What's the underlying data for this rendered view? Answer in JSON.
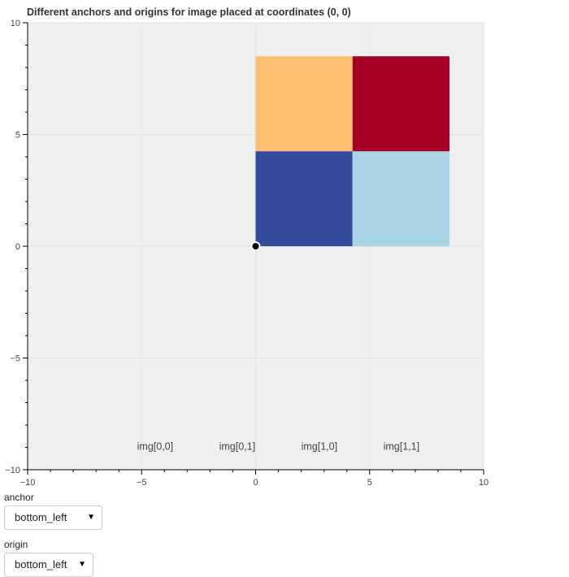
{
  "chart_data": {
    "type": "image",
    "title": "Different anchors and origins for image placed at coordinates (0, 0)",
    "xlim": [
      -10,
      10
    ],
    "ylim": [
      -10,
      10
    ],
    "x_major_ticks": [
      -10,
      -5,
      0,
      5,
      10
    ],
    "y_major_ticks": [
      -10,
      -5,
      0,
      5,
      10
    ],
    "x_minor_step": 1,
    "y_minor_step": 1,
    "x_tick_labels": [
      "−10",
      "−5",
      "0",
      "5",
      "10"
    ],
    "y_tick_labels": [
      "−10",
      "−5",
      "0",
      "5",
      "10"
    ],
    "grid": true,
    "image": {
      "x": 0,
      "y": 0,
      "dw": 8.5,
      "dh": 8.5,
      "anchor": "bottom_left",
      "origin": "bottom_left",
      "cells": [
        {
          "row": 0,
          "col": 0,
          "color": "#344b9b"
        },
        {
          "row": 0,
          "col": 1,
          "color": "#a8d4e5"
        },
        {
          "row": 1,
          "col": 0,
          "color": "#fdbf71"
        },
        {
          "row": 1,
          "col": 1,
          "color": "#a60026"
        }
      ]
    },
    "anchor_point": {
      "x": 0,
      "y": 0
    },
    "annotations": [
      {
        "text": "img[0,0]",
        "x": -5.2,
        "y": -9.1
      },
      {
        "text": "img[0,1]",
        "x": -1.6,
        "y": -9.1
      },
      {
        "text": "img[1,0]",
        "x": 2.0,
        "y": -9.1
      },
      {
        "text": "img[1,1]",
        "x": 5.6,
        "y": -9.1
      }
    ],
    "plot_background": "#efefef"
  },
  "controls": {
    "anchor": {
      "label": "anchor",
      "value": "bottom_left"
    },
    "origin": {
      "label": "origin",
      "value": "bottom_left"
    }
  }
}
